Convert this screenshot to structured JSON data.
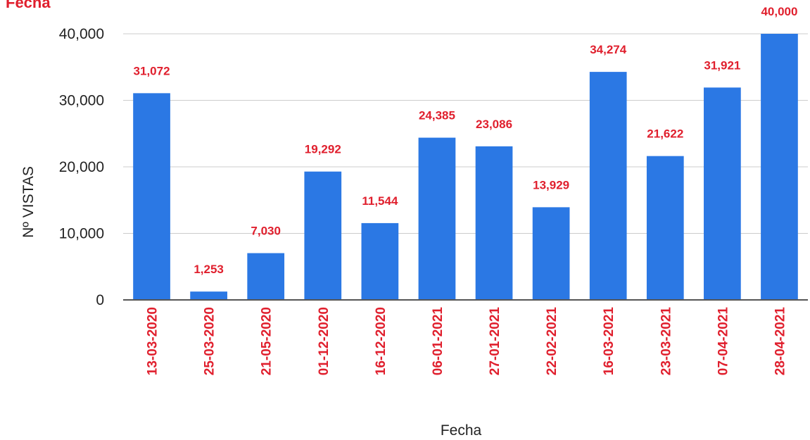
{
  "chart_data": {
    "type": "bar",
    "title": "Fecha",
    "xlabel": "Fecha",
    "ylabel": "Nº VISTAS",
    "ylim": [
      0,
      40000
    ],
    "yticks": [
      0,
      10000,
      20000,
      30000,
      40000
    ],
    "ytick_labels": [
      "0",
      "10,000",
      "20,000",
      "30,000",
      "40,000"
    ],
    "grid": true,
    "legend": "none",
    "categories": [
      "13-03-2020",
      "25-03-2020",
      "21-05-2020",
      "01-12-2020",
      "16-12-2020",
      "06-01-2021",
      "27-01-2021",
      "22-02-2021",
      "16-03-2021",
      "23-03-2021",
      "07-04-2021",
      "28-04-2021"
    ],
    "values": [
      31072,
      1253,
      7030,
      19292,
      11544,
      24385,
      23086,
      13929,
      34274,
      21622,
      31921,
      40000
    ],
    "data_labels": [
      "31,072",
      "1,253",
      "7,030",
      "19,292",
      "11,544",
      "24,385",
      "23,086",
      "13,929",
      "34,274",
      "21,622",
      "31,921",
      "40,000"
    ],
    "colors": {
      "bar": "#2b78e4",
      "label": "#e01f2d",
      "grid": "#cccccc",
      "axis": "#555555"
    }
  }
}
